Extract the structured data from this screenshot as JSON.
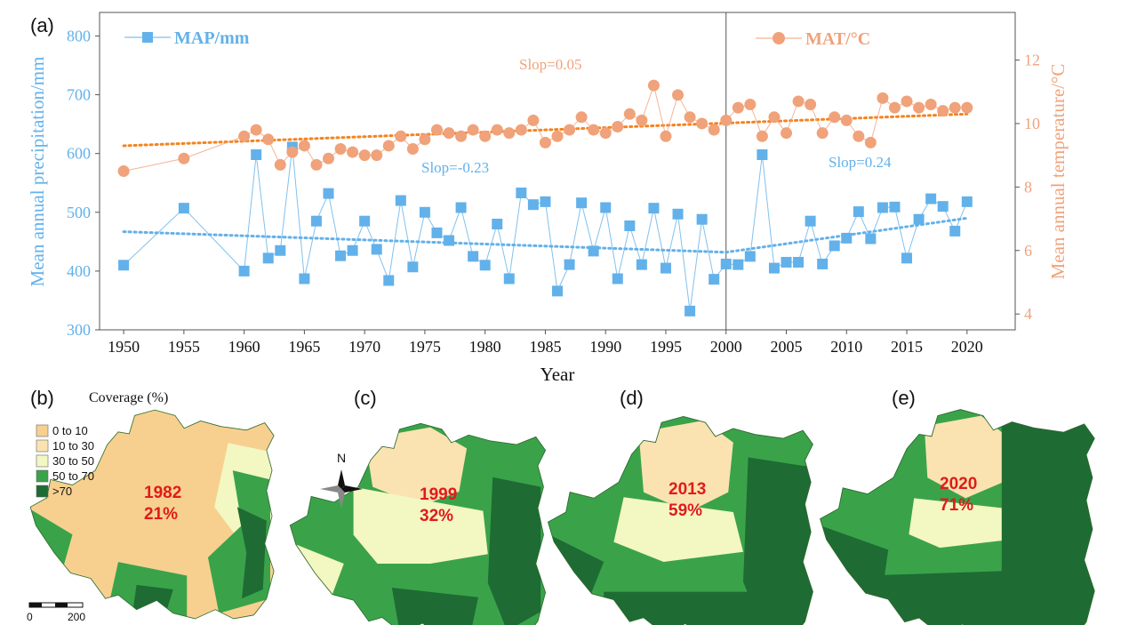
{
  "chart_data": {
    "type": "line",
    "panel_label": "(a)",
    "x": [
      1950,
      1955,
      1960,
      1961,
      1962,
      1963,
      1964,
      1965,
      1966,
      1967,
      1968,
      1969,
      1970,
      1971,
      1972,
      1973,
      1974,
      1975,
      1976,
      1977,
      1978,
      1979,
      1980,
      1981,
      1982,
      1983,
      1984,
      1985,
      1986,
      1987,
      1988,
      1989,
      1990,
      1991,
      1992,
      1993,
      1994,
      1995,
      1996,
      1997,
      1998,
      1999,
      2000,
      2001,
      2002,
      2003,
      2004,
      2005,
      2006,
      2007,
      2008,
      2009,
      2010,
      2011,
      2012,
      2013,
      2014,
      2015,
      2016,
      2017,
      2018,
      2019,
      2020
    ],
    "xlabel": "Year",
    "xticks": [
      1950,
      1955,
      1960,
      1965,
      1970,
      1975,
      1980,
      1985,
      1990,
      1995,
      2000,
      2005,
      2010,
      2015,
      2020
    ],
    "xlim": [
      1948,
      2024
    ],
    "divider_year": 2000,
    "ylabel_left": "Mean annual precipitation/mm",
    "ylim_left": [
      300,
      840
    ],
    "yticks_left": [
      300,
      400,
      500,
      600,
      700,
      800
    ],
    "ylabel_right": "Mean annual temperature/°C",
    "ylim_right": [
      3.5,
      13.5
    ],
    "yticks_right": [
      4,
      6,
      8,
      10,
      12
    ],
    "series": [
      {
        "name": "MAP/mm",
        "axis": "left",
        "color": "#62b1ea",
        "marker": "square",
        "values": [
          410,
          507,
          400,
          598,
          422,
          435,
          611,
          387,
          485,
          532,
          426,
          435,
          485,
          437,
          384,
          520,
          407,
          500,
          465,
          452,
          508,
          425,
          410,
          480,
          387,
          533,
          513,
          518,
          366,
          411,
          516,
          434,
          508,
          387,
          477,
          411,
          507,
          405,
          497,
          332,
          488,
          386,
          412,
          411,
          425,
          598,
          405,
          415,
          415,
          485,
          412,
          443,
          456,
          501,
          455,
          508,
          509,
          422,
          488,
          523,
          510,
          468,
          518
        ]
      },
      {
        "name": "MAT/°C",
        "axis": "right",
        "color": "#f0a27a",
        "marker": "circle",
        "values": [
          8.5,
          8.9,
          9.6,
          9.8,
          9.5,
          8.7,
          9.1,
          9.3,
          8.7,
          8.9,
          9.2,
          9.1,
          9.0,
          9.0,
          9.3,
          9.6,
          9.2,
          9.5,
          9.8,
          9.7,
          9.6,
          9.8,
          9.6,
          9.8,
          9.7,
          9.8,
          10.1,
          9.4,
          9.6,
          9.8,
          10.2,
          9.8,
          9.7,
          9.9,
          10.3,
          10.1,
          11.2,
          9.6,
          10.9,
          10.2,
          10.0,
          9.8,
          10.1,
          10.5,
          10.6,
          9.6,
          10.2,
          9.7,
          10.7,
          10.6,
          9.7,
          10.2,
          10.1,
          9.6,
          9.4,
          10.8,
          10.5,
          10.7,
          10.5,
          10.6,
          10.4,
          10.5,
          10.5
        ]
      }
    ],
    "trends": [
      {
        "series": "MAT/°C",
        "x": [
          1950,
          2020
        ],
        "y": [
          9.3,
          10.3
        ],
        "label": "Slop=0.05",
        "color": "#f5831f"
      },
      {
        "series": "MAP/mm",
        "x": [
          1950,
          2000
        ],
        "y": [
          467,
          432
        ],
        "label": "Slop=-0.23",
        "color": "#62b1ea"
      },
      {
        "series": "MAP/mm",
        "x": [
          2000,
          2020
        ],
        "y": [
          432,
          490
        ],
        "label": "Slop=0.24",
        "color": "#62b1ea"
      }
    ]
  },
  "maps": {
    "coverage_title": "Coverage (%)",
    "legend": [
      {
        "label": "0 to 10",
        "color": "#f7d08f"
      },
      {
        "label": "10 to 30",
        "color": "#fae3b0"
      },
      {
        "label": "30 to 50",
        "color": "#f3f7c2"
      },
      {
        "label": "50 to 70",
        "color": "#3aa34a"
      },
      {
        "label": ">70",
        "color": "#1e6b33"
      }
    ],
    "north_label": "N",
    "scale_start": "0",
    "scale_end": "200",
    "panels": [
      {
        "letter": "(b)",
        "year": "1982",
        "coverage": "21%"
      },
      {
        "letter": "(c)",
        "year": "1999",
        "coverage": "32%"
      },
      {
        "letter": "(d)",
        "year": "2013",
        "coverage": "59%"
      },
      {
        "letter": "(e)",
        "year": "2020",
        "coverage": "71%"
      }
    ]
  }
}
